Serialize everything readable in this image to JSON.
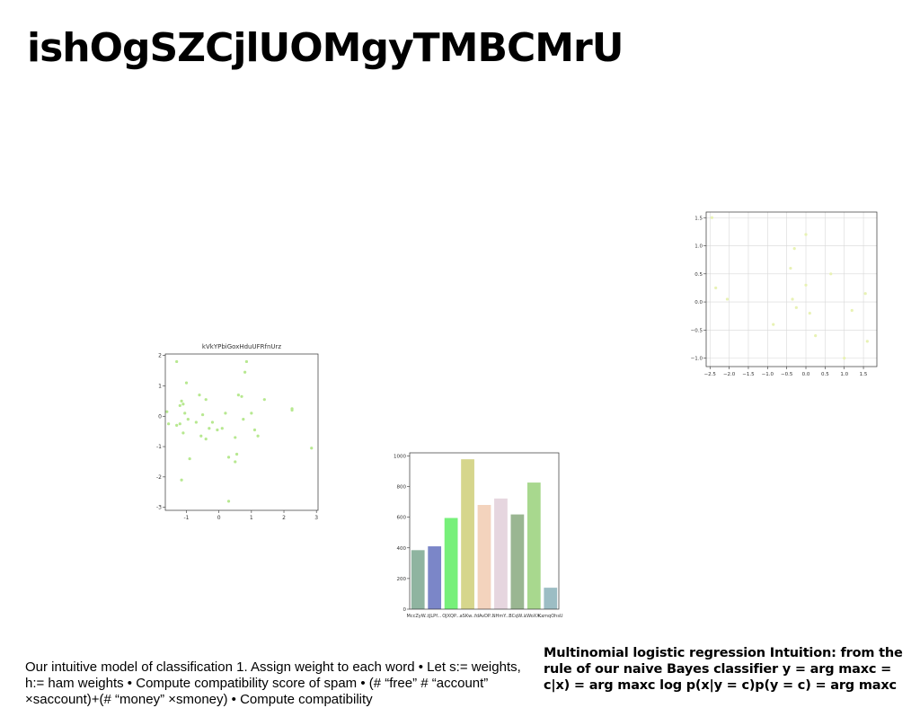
{
  "slide": {
    "title": "ishOgSZCjlUOMgyTMBCMrU",
    "body_text": "Our intuitive model of classification 1. Assign weight to each word • Let s:= weights, h:= ham weights • Compute compatibility score of spam • (# “free” # “account” ×saccount)+(# “money” ×smoney) • Compute compatibility",
    "side_text": "Multinomial logistic regression Intuition: from the rule of our naive Bayes classifier y = arg maxc = c|x) = arg maxc log p(x|y = c)p(y = c) = arg maxc"
  },
  "chart_data": [
    {
      "type": "scatter",
      "title": "kVkYPbiGoxHduUFRfnUrz",
      "xlim": [
        -1.65,
        3.05
      ],
      "ylim": [
        -3.1,
        2.05
      ],
      "xticks": [
        -1,
        0,
        1,
        2,
        3
      ],
      "yticks": [
        -3,
        -2,
        -1,
        0,
        1,
        2
      ],
      "grid": false,
      "color": "#b7e890",
      "points": [
        {
          "x": -1.3,
          "y": 1.8
        },
        {
          "x": -1.0,
          "y": 1.1
        },
        {
          "x": -0.6,
          "y": 0.7
        },
        {
          "x": -0.4,
          "y": 0.55
        },
        {
          "x": -1.15,
          "y": 0.5
        },
        {
          "x": -1.1,
          "y": 0.4
        },
        {
          "x": -1.2,
          "y": 0.35
        },
        {
          "x": -1.05,
          "y": 0.1
        },
        {
          "x": -0.95,
          "y": -0.1
        },
        {
          "x": -1.2,
          "y": -0.25
        },
        {
          "x": -1.55,
          "y": -0.25
        },
        {
          "x": -1.6,
          "y": 0.15
        },
        {
          "x": -1.3,
          "y": -0.3
        },
        {
          "x": -1.1,
          "y": -0.55
        },
        {
          "x": -0.7,
          "y": -0.2
        },
        {
          "x": -0.5,
          "y": 0.05
        },
        {
          "x": -0.2,
          "y": -0.2
        },
        {
          "x": -0.3,
          "y": -0.4
        },
        {
          "x": -0.55,
          "y": -0.65
        },
        {
          "x": -0.4,
          "y": -0.75
        },
        {
          "x": -0.9,
          "y": -1.4
        },
        {
          "x": -1.15,
          "y": -2.1
        },
        {
          "x": 0.2,
          "y": 0.1
        },
        {
          "x": 0.1,
          "y": -0.4
        },
        {
          "x": 0.6,
          "y": 0.7
        },
        {
          "x": 0.7,
          "y": 0.65
        },
        {
          "x": 0.85,
          "y": 1.8
        },
        {
          "x": 0.8,
          "y": 1.45
        },
        {
          "x": 0.75,
          "y": -0.1
        },
        {
          "x": 0.5,
          "y": -0.7
        },
        {
          "x": 1.0,
          "y": 0.1
        },
        {
          "x": 1.1,
          "y": -0.45
        },
        {
          "x": 1.2,
          "y": -0.65
        },
        {
          "x": 1.4,
          "y": 0.55
        },
        {
          "x": 0.3,
          "y": -1.35
        },
        {
          "x": 0.5,
          "y": -1.5
        },
        {
          "x": 0.55,
          "y": -1.25
        },
        {
          "x": 2.25,
          "y": 0.25
        },
        {
          "x": 2.25,
          "y": 0.2
        },
        {
          "x": 2.85,
          "y": -1.05
        },
        {
          "x": 0.3,
          "y": -2.8
        },
        {
          "x": -0.05,
          "y": -0.45
        }
      ]
    },
    {
      "type": "bar",
      "categories": [
        "MccZyW...",
        "tJLPf...",
        "OJXQP...",
        "aSKw...",
        "fdAvDP...",
        "NHmY...",
        "BCqW...",
        "kWoXX...",
        "KxmqOhsU"
      ],
      "values": [
        385,
        410,
        595,
        978,
        680,
        722,
        618,
        826,
        140
      ],
      "colors": [
        "#8fb4a0",
        "#7b86c8",
        "#77f07a",
        "#d6d68c",
        "#f3d3bd",
        "#e6d6df",
        "#9ab692",
        "#a8d88e",
        "#9cbdc4"
      ],
      "ylim": [
        0,
        1020
      ],
      "yticks": [
        0,
        200,
        400,
        600,
        800,
        1000
      ],
      "grid": false
    },
    {
      "type": "scatter",
      "xlim": [
        -2.6,
        1.85
      ],
      "ylim": [
        -1.15,
        1.6
      ],
      "xticks": [
        -2.5,
        -2.0,
        -1.5,
        -1.0,
        -0.5,
        0.0,
        0.5,
        1.0,
        1.5
      ],
      "yticks": [
        -1.0,
        -0.5,
        0.0,
        0.5,
        1.0,
        1.5
      ],
      "grid": true,
      "color": "#e8f2b4",
      "points": [
        {
          "x": -2.45,
          "y": 1.5
        },
        {
          "x": -2.35,
          "y": 0.25
        },
        {
          "x": -2.05,
          "y": 0.05
        },
        {
          "x": -0.85,
          "y": -0.4
        },
        {
          "x": -0.4,
          "y": 0.6
        },
        {
          "x": -0.35,
          "y": 0.05
        },
        {
          "x": -0.3,
          "y": 0.95
        },
        {
          "x": -0.25,
          "y": -0.1
        },
        {
          "x": 0.0,
          "y": 1.2
        },
        {
          "x": 0.0,
          "y": 0.3
        },
        {
          "x": 0.1,
          "y": -0.2
        },
        {
          "x": 0.25,
          "y": -0.6
        },
        {
          "x": 0.65,
          "y": 0.5
        },
        {
          "x": 1.0,
          "y": -1.0
        },
        {
          "x": 1.2,
          "y": -0.15
        },
        {
          "x": 1.55,
          "y": 0.15
        },
        {
          "x": 1.6,
          "y": -0.7
        }
      ]
    }
  ]
}
